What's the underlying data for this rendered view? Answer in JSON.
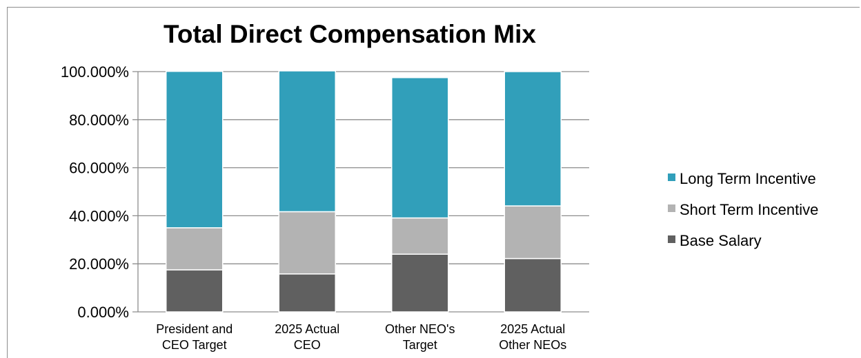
{
  "chart_data": {
    "type": "bar",
    "stacked": true,
    "title": "Total Direct Compensation Mix",
    "categories": [
      [
        "President and",
        "CEO Target"
      ],
      [
        "2025 Actual",
        "CEO"
      ],
      [
        "Other NEO's",
        "Target"
      ],
      [
        "2025 Actual",
        "Other NEOs"
      ]
    ],
    "series": [
      {
        "name": "Base Salary",
        "color": "#606060",
        "values": [
          17.5,
          15.8,
          24.0,
          22.2
        ]
      },
      {
        "name": "Short Term Incentive",
        "color": "#b3b3b3",
        "values": [
          17.5,
          25.9,
          15.1,
          21.9
        ]
      },
      {
        "name": "Long Term Incentive",
        "color": "#319fba",
        "values": [
          65.1,
          58.6,
          58.4,
          55.9
        ]
      }
    ],
    "ylim": [
      0,
      100
    ],
    "yticks": [
      "0.000%",
      "20.000%",
      "40.000%",
      "60.000%",
      "80.000%",
      "100.000%"
    ],
    "grid": true,
    "legend_position": "right",
    "legend_order": [
      "Long Term Incentive",
      "Short Term Incentive",
      "Base Salary"
    ]
  }
}
